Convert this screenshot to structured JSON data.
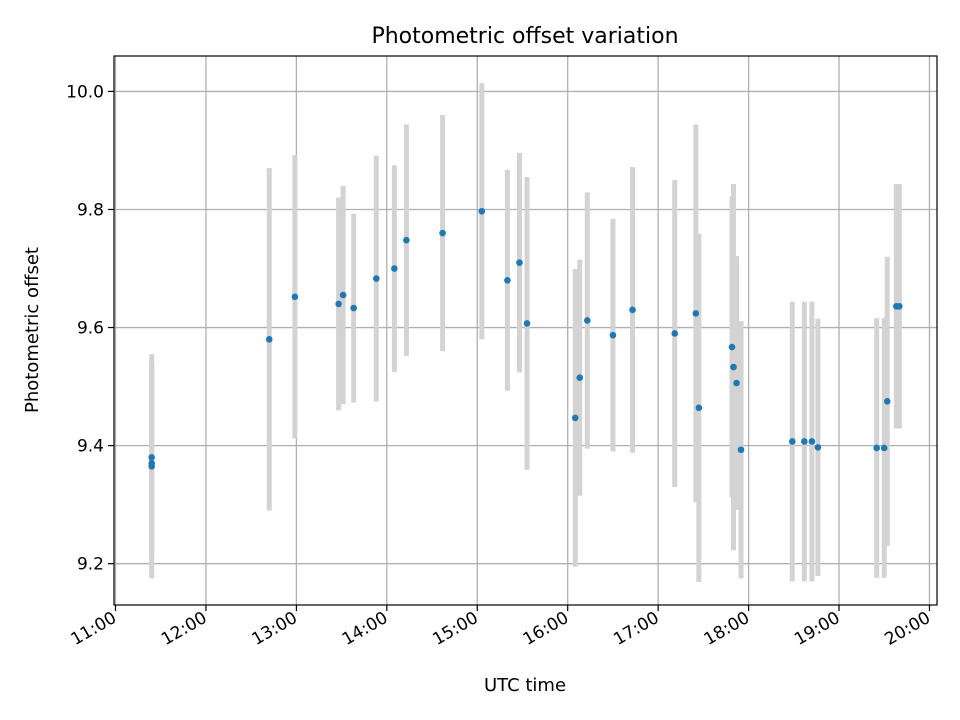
{
  "chart_data": {
    "type": "scatter",
    "title": "Photometric offset variation",
    "xlabel": "UTC time",
    "ylabel": "Photometric offset",
    "xlim": [
      "10:59",
      "20:05"
    ],
    "ylim": [
      9.13,
      10.06
    ],
    "x_ticks": [
      "11:00",
      "12:00",
      "13:00",
      "14:00",
      "15:00",
      "16:00",
      "17:00",
      "18:00",
      "19:00",
      "20:00"
    ],
    "y_ticks": [
      "9.2",
      "9.4",
      "9.6",
      "9.8",
      "10.0"
    ],
    "grid": true,
    "colors": {
      "points": "#1f77b4",
      "errorbars": "#d3d3d3",
      "grid": "#b0b0b0"
    },
    "points": [
      {
        "x": "11:24",
        "y": 9.365,
        "yerr": 0.19
      },
      {
        "x": "11:24",
        "y": 9.37,
        "yerr": 0.17
      },
      {
        "x": "11:24",
        "y": 9.38,
        "yerr": 0.16
      },
      {
        "x": "12:42",
        "y": 9.58,
        "yerr": 0.29
      },
      {
        "x": "12:59",
        "y": 9.652,
        "yerr": 0.24
      },
      {
        "x": "13:28",
        "y": 9.64,
        "yerr": 0.18
      },
      {
        "x": "13:31",
        "y": 9.655,
        "yerr": 0.185
      },
      {
        "x": "13:38",
        "y": 9.633,
        "yerr": 0.16
      },
      {
        "x": "13:53",
        "y": 9.683,
        "yerr": 0.208
      },
      {
        "x": "14:05",
        "y": 9.7,
        "yerr": 0.175
      },
      {
        "x": "14:13",
        "y": 9.748,
        "yerr": 0.196
      },
      {
        "x": "14:37",
        "y": 9.76,
        "yerr": 0.2
      },
      {
        "x": "15:03",
        "y": 9.797,
        "yerr": 0.217
      },
      {
        "x": "15:20",
        "y": 9.68,
        "yerr": 0.187
      },
      {
        "x": "15:28",
        "y": 9.71,
        "yerr": 0.186
      },
      {
        "x": "15:33",
        "y": 9.607,
        "yerr": 0.248
      },
      {
        "x": "16:05",
        "y": 9.447,
        "yerr": 0.252
      },
      {
        "x": "16:08",
        "y": 9.515,
        "yerr": 0.2
      },
      {
        "x": "16:13",
        "y": 9.612,
        "yerr": 0.217
      },
      {
        "x": "16:30",
        "y": 9.587,
        "yerr": 0.197
      },
      {
        "x": "16:43",
        "y": 9.63,
        "yerr": 0.242
      },
      {
        "x": "17:11",
        "y": 9.59,
        "yerr": 0.26
      },
      {
        "x": "17:25",
        "y": 9.624,
        "yerr": 0.32
      },
      {
        "x": "17:27",
        "y": 9.464,
        "yerr": 0.295
      },
      {
        "x": "17:49",
        "y": 9.567,
        "yerr": 0.255
      },
      {
        "x": "17:50",
        "y": 9.533,
        "yerr": 0.31
      },
      {
        "x": "17:52",
        "y": 9.506,
        "yerr": 0.215
      },
      {
        "x": "17:55",
        "y": 9.393,
        "yerr": 0.218
      },
      {
        "x": "18:29",
        "y": 9.407,
        "yerr": 0.237
      },
      {
        "x": "18:37",
        "y": 9.407,
        "yerr": 0.237
      },
      {
        "x": "18:42",
        "y": 9.407,
        "yerr": 0.237
      },
      {
        "x": "18:46",
        "y": 9.397,
        "yerr": 0.218
      },
      {
        "x": "19:25",
        "y": 9.396,
        "yerr": 0.22
      },
      {
        "x": "19:30",
        "y": 9.396,
        "yerr": 0.22
      },
      {
        "x": "19:32",
        "y": 9.475,
        "yerr": 0.245
      },
      {
        "x": "19:38",
        "y": 9.636,
        "yerr": 0.207
      },
      {
        "x": "19:40",
        "y": 9.636,
        "yerr": 0.207
      }
    ]
  }
}
